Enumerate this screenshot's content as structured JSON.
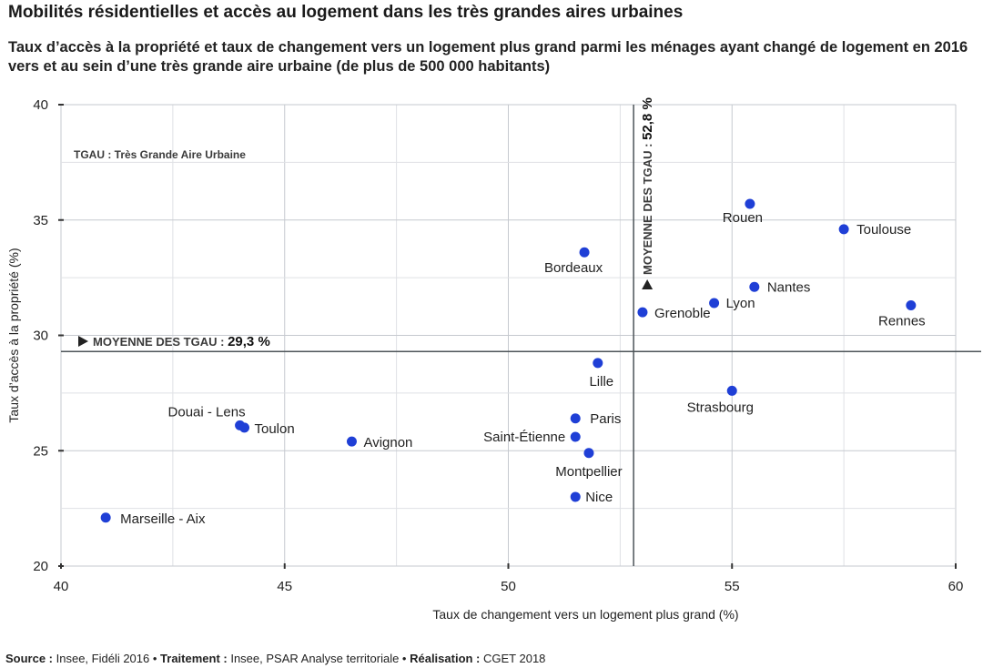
{
  "header": {
    "title": "Mobilités résidentielles et accès au logement dans les très grandes aires urbaines",
    "subtitle": "Taux d’accès à la propriété et taux de changement vers un logement plus grand parmi les ménages ayant changé de logement en 2016 vers et au sein d’une très grande aire urbaine (de plus de 500 000 habitants)"
  },
  "chart_data": {
    "type": "scatter",
    "xlabel": "Taux de changement vers un logement plus grand (%)",
    "ylabel": "Taux d’accès à la propriété (%)",
    "xlim": [
      40,
      60
    ],
    "ylim": [
      20,
      40
    ],
    "x_ticks": [
      40,
      45,
      50,
      55,
      60
    ],
    "y_ticks": [
      20,
      25,
      30,
      35,
      40
    ],
    "grid": true,
    "point_color": "#1f3fd6",
    "note": "TGAU : Très Grande Aire Urbaine",
    "reference_lines": [
      {
        "axis": "x",
        "value": 52.8,
        "label_prefix": "MOYENNE DES TGAU :",
        "label_value": "52,8 %"
      },
      {
        "axis": "y",
        "value": 29.3,
        "label_prefix": "MOYENNE DES TGAU :",
        "label_value": "29,3 %"
      }
    ],
    "points": [
      {
        "label": "Rouen",
        "x": 55.4,
        "y": 35.7
      },
      {
        "label": "Toulouse",
        "x": 57.5,
        "y": 34.6
      },
      {
        "label": "Bordeaux",
        "x": 51.7,
        "y": 33.6
      },
      {
        "label": "Nantes",
        "x": 55.5,
        "y": 32.1
      },
      {
        "label": "Lyon",
        "x": 54.6,
        "y": 31.4
      },
      {
        "label": "Grenoble",
        "x": 53.0,
        "y": 31.0
      },
      {
        "label": "Rennes",
        "x": 59.0,
        "y": 31.3
      },
      {
        "label": "Lille",
        "x": 52.0,
        "y": 28.8
      },
      {
        "label": "Strasbourg",
        "x": 55.0,
        "y": 27.6
      },
      {
        "label": "Paris",
        "x": 51.5,
        "y": 26.4
      },
      {
        "label": "Douai - Lens",
        "x": 44.0,
        "y": 26.1
      },
      {
        "label": "Toulon",
        "x": 44.1,
        "y": 26.0
      },
      {
        "label": "Saint-Étienne",
        "x": 51.5,
        "y": 25.6
      },
      {
        "label": "Avignon",
        "x": 46.5,
        "y": 25.4
      },
      {
        "label": "Montpellier",
        "x": 51.8,
        "y": 24.9
      },
      {
        "label": "Nice",
        "x": 51.5,
        "y": 23.0
      },
      {
        "label": "Marseille - Aix",
        "x": 41.0,
        "y": 22.1
      }
    ]
  },
  "footer": {
    "source_label": "Source :",
    "source_text": " Insee, Fidéli 2016 • ",
    "processing_label": "Traitement :",
    "processing_text": " Insee, PSAR Analyse territoriale • ",
    "production_label": "Réalisation :",
    "production_text": " CGET 2018"
  }
}
